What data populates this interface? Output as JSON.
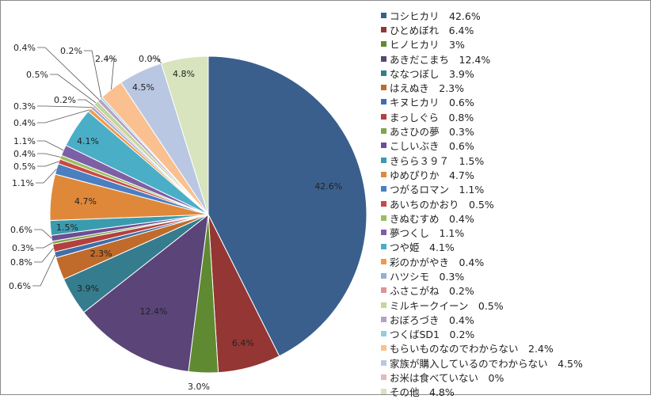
{
  "chart_data": {
    "type": "pie",
    "title": "",
    "series": [
      {
        "name": "コシヒカリ",
        "value": 42.6,
        "label": "42.6%",
        "legend": "コシヒカリ　42.6%",
        "color": "#3A5F8C"
      },
      {
        "name": "ひとめぼれ",
        "value": 6.4,
        "label": "6.4%",
        "legend": "ひとめぼれ　6.4%",
        "color": "#943634"
      },
      {
        "name": "ヒノヒカリ",
        "value": 3.0,
        "label": "3.0%",
        "legend": "ヒノヒカリ　3%",
        "color": "#5F8A32"
      },
      {
        "name": "あきだこまち",
        "value": 12.4,
        "label": "12.4%",
        "legend": "あきだこまち　12.4%",
        "color": "#5A4478"
      },
      {
        "name": "ななつぼし",
        "value": 3.9,
        "label": "3.9%",
        "legend": "ななつぼし　3.9%",
        "color": "#357C8F"
      },
      {
        "name": "はえぬき",
        "value": 2.3,
        "label": "2.3%",
        "legend": "はえぬき　2.3%",
        "color": "#C06A2B"
      },
      {
        "name": "キヌヒカリ",
        "value": 0.6,
        "label": "0.6%",
        "legend": "キヌヒカリ　0.6%",
        "color": "#3F6EA8"
      },
      {
        "name": "まっしぐら",
        "value": 0.8,
        "label": "0.8%",
        "legend": "まっしぐら　0.8%",
        "color": "#B2413E"
      },
      {
        "name": "あさひの夢",
        "value": 0.3,
        "label": "0.3%",
        "legend": "あさひの夢　0.3%",
        "color": "#7FA54A"
      },
      {
        "name": "こしいぶき",
        "value": 0.6,
        "label": "0.6%",
        "legend": "こしいぶき　0.6%",
        "color": "#6B4E93"
      },
      {
        "name": "きらら３９７",
        "value": 1.5,
        "label": "1.5%",
        "legend": "きらら３９７　1.5%",
        "color": "#3B9BAE"
      },
      {
        "name": "ゆめぴりか",
        "value": 4.7,
        "label": "4.7%",
        "legend": "ゆめぴりか　4.7%",
        "color": "#E0883A"
      },
      {
        "name": "つがるロマン",
        "value": 1.1,
        "label": "1.1%",
        "legend": "つがるロマン　1.1%",
        "color": "#4A7FC0"
      },
      {
        "name": "あいちのかおり",
        "value": 0.5,
        "label": "0.5%",
        "legend": "あいちのかおり　0.5%",
        "color": "#C84A48"
      },
      {
        "name": "きぬむすめ",
        "value": 0.4,
        "label": "0.4%",
        "legend": "きぬむすめ　0.4%",
        "color": "#99BF5C"
      },
      {
        "name": "夢つくし",
        "value": 1.1,
        "label": "1.1%",
        "legend": "夢つくし　1.1%",
        "color": "#7D5FA6"
      },
      {
        "name": "つや姫",
        "value": 4.1,
        "label": "4.1%",
        "legend": "つや姫　4.1%",
        "color": "#4BAEC7"
      },
      {
        "name": "彩のかがやき",
        "value": 0.4,
        "label": "0.4%",
        "legend": "彩のかがやき　0.4%",
        "color": "#F29A4A"
      },
      {
        "name": "ハツシモ",
        "value": 0.3,
        "label": "0.3%",
        "legend": "ハツシモ　0.3%",
        "color": "#94AED6"
      },
      {
        "name": "ふさこがね",
        "value": 0.2,
        "label": "0.2%",
        "legend": "ふさこがね　0.2%",
        "color": "#D99694"
      },
      {
        "name": "ミルキークイーン",
        "value": 0.5,
        "label": "0.5%",
        "legend": "ミルキークイーン　0.5%",
        "color": "#C3D69B"
      },
      {
        "name": "おぼろづき",
        "value": 0.4,
        "label": "0.4%",
        "legend": "おぼろづき　0.4%",
        "color": "#B3A2C7"
      },
      {
        "name": "つくばSD1",
        "value": 0.2,
        "label": "0.2%",
        "legend": "つくばSD1　0.2%",
        "color": "#93CDDD"
      },
      {
        "name": "もらいものなのでわからない",
        "value": 2.4,
        "label": "2.4%",
        "legend": "もらいものなのでわからない　2.4%",
        "color": "#FAC090"
      },
      {
        "name": "家族が購入しているのでわからない",
        "value": 4.5,
        "label": "4.5%",
        "legend": "家族が購入しているのでわからない　4.5%",
        "color": "#B9C7E2"
      },
      {
        "name": "お米は食べていない",
        "value": 0.0,
        "label": "0.0%",
        "legend": "お米は食べていない　0%",
        "color": "#E6B8B7"
      },
      {
        "name": "その他",
        "value": 4.8,
        "label": "4.8%",
        "legend": "その他　4.8%",
        "color": "#D7E4BD"
      }
    ]
  }
}
